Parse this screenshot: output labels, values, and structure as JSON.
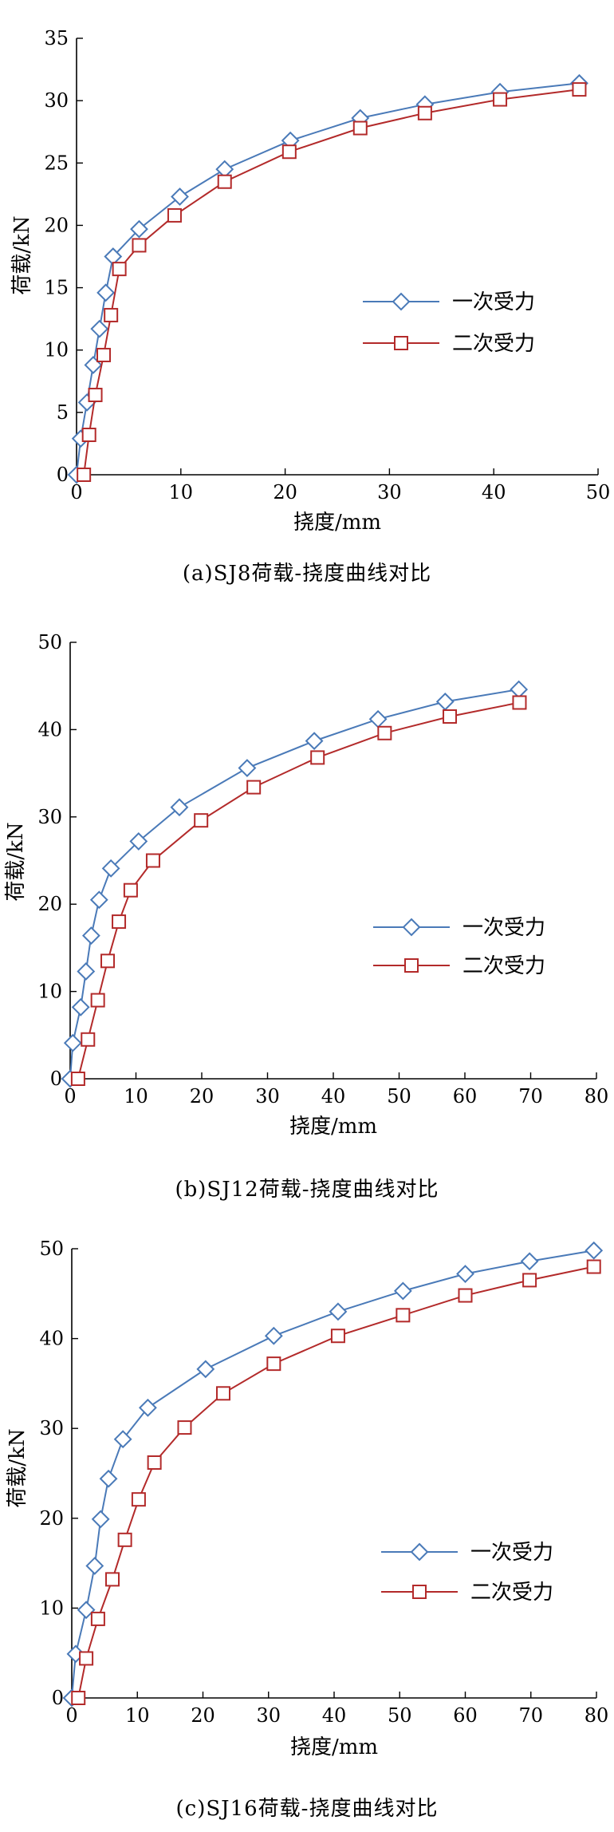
{
  "colors": {
    "series1": "#4a7ab8",
    "series2": "#b32a2a",
    "axis": "#000000"
  },
  "chart_data": [
    {
      "type": "line",
      "xlabel": "挠度/mm",
      "ylabel": "荷载/kN",
      "caption": "(a)SJ8荷载-挠度曲线对比",
      "xlim": [
        0,
        50
      ],
      "ylim": [
        0,
        35
      ],
      "xticks": [
        0,
        10,
        20,
        30,
        40,
        50
      ],
      "yticks": [
        0,
        5,
        10,
        15,
        20,
        25,
        30,
        35
      ],
      "grid": false,
      "legend_position": "center-right",
      "series": [
        {
          "name": "一次受力",
          "marker": "diamond",
          "x": [
            0,
            0.4,
            1.0,
            1.6,
            2.2,
            2.8,
            3.5,
            6.0,
            9.9,
            14.2,
            20.5,
            27.2,
            33.4,
            40.6,
            48.2
          ],
          "y": [
            0,
            2.9,
            5.8,
            8.8,
            11.7,
            14.6,
            17.5,
            19.7,
            22.3,
            24.5,
            26.8,
            28.6,
            29.7,
            30.7,
            31.4
          ]
        },
        {
          "name": "二次受力",
          "marker": "square",
          "x": [
            0.7,
            1.2,
            1.8,
            2.6,
            3.3,
            4.1,
            6.0,
            9.4,
            14.2,
            20.4,
            27.2,
            33.4,
            40.6,
            48.2
          ],
          "y": [
            0,
            3.2,
            6.4,
            9.6,
            12.8,
            16.5,
            18.4,
            20.8,
            23.5,
            25.9,
            27.8,
            29.0,
            30.1,
            30.9
          ]
        }
      ]
    },
    {
      "type": "line",
      "xlabel": "挠度/mm",
      "ylabel": "荷载/kN",
      "caption": "(b)SJ12荷载-挠度曲线对比",
      "xlim": [
        0,
        80
      ],
      "ylim": [
        0,
        50
      ],
      "xticks": [
        0,
        10,
        20,
        30,
        40,
        50,
        60,
        70,
        80
      ],
      "yticks": [
        0,
        10,
        20,
        30,
        40,
        50
      ],
      "grid": false,
      "legend_position": "center-right",
      "series": [
        {
          "name": "一次受力",
          "marker": "diamond",
          "x": [
            0,
            0.4,
            1.6,
            2.4,
            3.2,
            4.4,
            6.2,
            10.4,
            16.6,
            26.9,
            37.1,
            46.8,
            57.0,
            68.2
          ],
          "y": [
            0,
            4.1,
            8.2,
            12.3,
            16.4,
            20.5,
            24.1,
            27.2,
            31.1,
            35.6,
            38.7,
            41.2,
            43.2,
            44.6
          ]
        },
        {
          "name": "二次受力",
          "marker": "square",
          "x": [
            1.2,
            2.7,
            4.2,
            5.7,
            7.4,
            9.2,
            12.6,
            19.9,
            27.9,
            37.6,
            47.8,
            57.7,
            68.3
          ],
          "y": [
            0,
            4.5,
            9.0,
            13.5,
            18.0,
            21.6,
            25.0,
            29.6,
            33.4,
            36.8,
            39.6,
            41.5,
            43.1
          ]
        }
      ]
    },
    {
      "type": "line",
      "xlabel": "挠度/mm",
      "ylabel": "荷载/kN",
      "caption": "(c)SJ16荷载-挠度曲线对比",
      "xlim": [
        0,
        80
      ],
      "ylim": [
        0,
        50
      ],
      "xticks": [
        0,
        10,
        20,
        30,
        40,
        50,
        60,
        70,
        80
      ],
      "yticks": [
        0,
        10,
        20,
        30,
        40,
        50
      ],
      "grid": false,
      "legend_position": "lower-right",
      "series": [
        {
          "name": "一次受力",
          "marker": "diamond",
          "x": [
            0,
            0.6,
            2.2,
            3.5,
            4.4,
            5.6,
            7.8,
            11.6,
            20.4,
            30.8,
            40.6,
            50.5,
            60.0,
            69.8,
            79.6
          ],
          "y": [
            0,
            4.9,
            9.8,
            14.7,
            19.9,
            24.4,
            28.8,
            32.3,
            36.6,
            40.3,
            43.0,
            45.3,
            47.2,
            48.6,
            49.8
          ]
        },
        {
          "name": "二次受力",
          "marker": "square",
          "x": [
            1.0,
            2.2,
            4.0,
            6.2,
            8.1,
            10.2,
            12.6,
            17.2,
            23.1,
            30.8,
            40.6,
            50.5,
            60.0,
            69.8,
            79.6
          ],
          "y": [
            0,
            4.4,
            8.8,
            13.2,
            17.6,
            22.1,
            26.2,
            30.1,
            33.9,
            37.2,
            40.3,
            42.6,
            44.8,
            46.5,
            48.0
          ]
        }
      ]
    }
  ]
}
